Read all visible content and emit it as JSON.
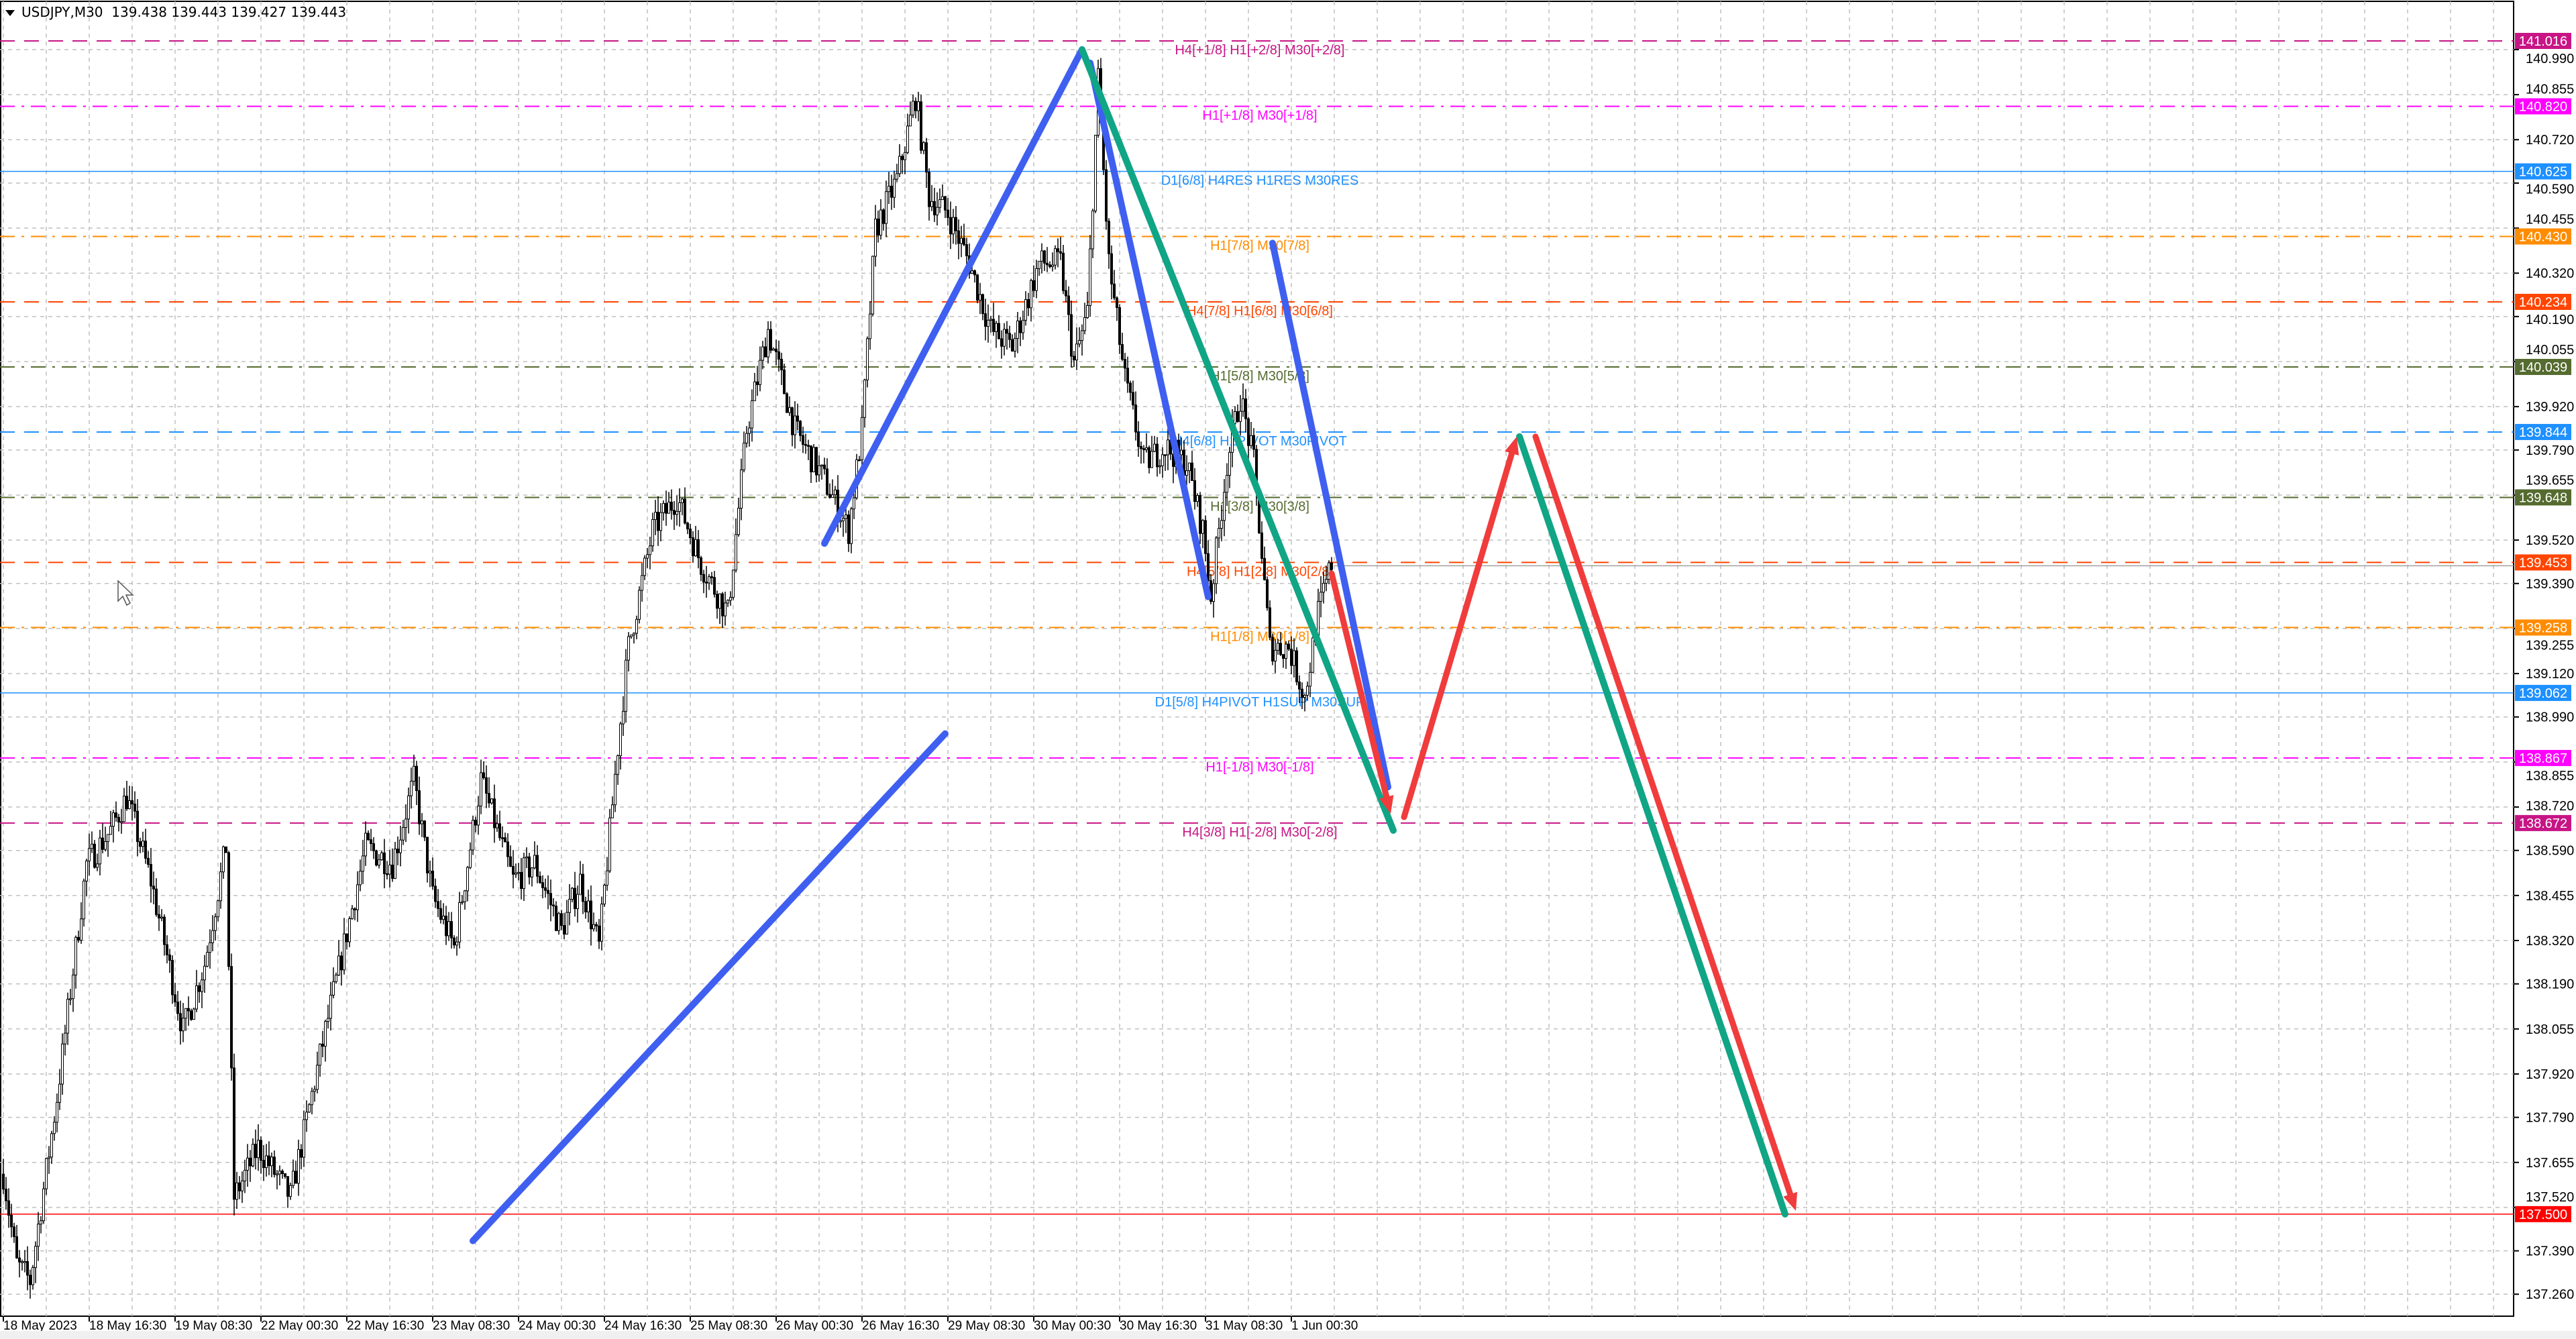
{
  "window": {
    "symbol_label": "USDJPY,M30",
    "ohlc": "139.438 139.443 139.427 139.443",
    "collapse_icon": "triangle-down-icon"
  },
  "colors": {
    "background": "#ffffff",
    "grid": "#c0c0c0",
    "bull_body": "#ffffff",
    "bear_body": "#000000",
    "candle_outline": "#000000",
    "blue_wave": "#3f5ff0",
    "green_wave": "#10a585",
    "red_forecast": "#f03c3c"
  },
  "chart_data": {
    "type": "candlestick",
    "symbol": "USDJPY",
    "timeframe": "M30",
    "ylim": [
      137.2,
      141.1
    ],
    "y_ticks": [
      "140.990",
      "140.855",
      "140.720",
      "140.590",
      "140.455",
      "140.320",
      "140.190",
      "140.055",
      "139.920",
      "139.790",
      "139.655",
      "139.520",
      "139.390",
      "139.255",
      "139.120",
      "138.990",
      "138.855",
      "138.720",
      "138.590",
      "138.455",
      "138.320",
      "138.190",
      "138.055",
      "137.920",
      "137.790",
      "137.655",
      "137.520",
      "137.390",
      "137.260"
    ],
    "x_ticks": [
      "18 May 2023",
      "18 May 16:30",
      "19 May 08:30",
      "22 May 00:30",
      "22 May 16:30",
      "23 May 08:30",
      "24 May 00:30",
      "24 May 16:30",
      "25 May 08:30",
      "26 May 00:30",
      "26 May 16:30",
      "29 May 08:30",
      "30 May 00:30",
      "30 May 16:30",
      "31 May 08:30",
      "1 Jun 00:30"
    ],
    "bars_per_x_tick": 32,
    "price_path": [
      [
        0,
        137.62
      ],
      [
        5,
        137.35
      ],
      [
        10,
        137.3
      ],
      [
        20,
        137.85
      ],
      [
        31,
        138.55
      ],
      [
        40,
        138.65
      ],
      [
        46,
        138.75
      ],
      [
        55,
        138.5
      ],
      [
        67,
        138.05
      ],
      [
        75,
        138.25
      ],
      [
        83,
        138.6
      ],
      [
        86,
        137.55
      ],
      [
        95,
        137.7
      ],
      [
        107,
        137.55
      ],
      [
        120,
        138.05
      ],
      [
        135,
        138.6
      ],
      [
        145,
        138.55
      ],
      [
        153,
        138.8
      ],
      [
        160,
        138.45
      ],
      [
        168,
        138.3
      ],
      [
        178,
        138.8
      ],
      [
        190,
        138.5
      ],
      [
        198,
        138.55
      ],
      [
        208,
        138.35
      ],
      [
        215,
        138.5
      ],
      [
        222,
        138.3
      ],
      [
        229,
        138.9
      ],
      [
        233,
        139.2
      ],
      [
        242,
        139.55
      ],
      [
        251,
        139.65
      ],
      [
        260,
        139.45
      ],
      [
        270,
        139.3
      ],
      [
        277,
        139.85
      ],
      [
        285,
        140.15
      ],
      [
        295,
        139.85
      ],
      [
        306,
        139.7
      ],
      [
        315,
        139.55
      ],
      [
        320,
        139.85
      ],
      [
        325,
        140.45
      ],
      [
        333,
        140.6
      ],
      [
        340,
        140.85
      ],
      [
        345,
        140.55
      ],
      [
        352,
        140.5
      ],
      [
        360,
        140.35
      ],
      [
        368,
        140.15
      ],
      [
        376,
        140.1
      ],
      [
        386,
        140.35
      ],
      [
        394,
        140.35
      ],
      [
        399,
        140.05
      ],
      [
        404,
        140.2
      ],
      [
        408,
        140.9
      ],
      [
        412,
        140.35
      ],
      [
        418,
        140.0
      ],
      [
        425,
        139.75
      ],
      [
        433,
        139.8
      ],
      [
        441,
        139.75
      ],
      [
        447,
        139.55
      ],
      [
        450,
        139.35
      ],
      [
        456,
        139.75
      ],
      [
        461,
        139.95
      ],
      [
        466,
        139.75
      ],
      [
        472,
        139.2
      ],
      [
        479,
        139.2
      ],
      [
        485,
        139.05
      ],
      [
        490,
        139.3
      ],
      [
        495,
        139.45
      ]
    ],
    "pattern_lines": [
      {
        "color": "blue_wave",
        "from": [
          175,
          137.42
        ],
        "to": [
          351,
          138.94
        ]
      },
      {
        "color": "blue_wave",
        "from": [
          306,
          139.51
        ],
        "to": [
          402,
          140.99
        ]
      },
      {
        "color": "blue_wave",
        "from": [
          405,
          140.95
        ],
        "to": [
          449,
          139.35
        ]
      },
      {
        "color": "blue_wave",
        "from": [
          473,
          140.41
        ],
        "to": [
          516,
          138.78
        ]
      },
      {
        "color": "green_wave",
        "from": [
          402,
          140.99
        ],
        "to": [
          518,
          138.65
        ]
      },
      {
        "color": "green_wave",
        "from": [
          565,
          139.83
        ],
        "to": [
          664,
          137.5
        ]
      }
    ],
    "forecast_arrows": [
      {
        "color": "red_forecast",
        "from": [
          495,
          139.42
        ],
        "to": [
          517,
          138.7
        ]
      },
      {
        "color": "red_forecast",
        "from": [
          522,
          138.69
        ],
        "to": [
          564,
          139.83
        ]
      },
      {
        "color": "red_forecast",
        "from": [
          571,
          139.83
        ],
        "to": [
          668,
          137.51
        ]
      }
    ],
    "levels": [
      {
        "price": "141.016",
        "label": "H4[+1/8] H1[+2/8] M30[+2/8]",
        "color": "#c71585",
        "style": "dash"
      },
      {
        "price": "140.820",
        "label": "H1[+1/8] M30[+1/8]",
        "color": "#ff00ff",
        "style": "dashdot"
      },
      {
        "price": "140.625",
        "label": "D1[6/8] H4RES H1RES M30RES",
        "color": "#1e90ff",
        "style": "solid"
      },
      {
        "price": "140.430",
        "label": "H1[7/8] M30[7/8]",
        "color": "#ff8c00",
        "style": "dashdot"
      },
      {
        "price": "140.234",
        "label": "H4[7/8] H1[6/8] M30[6/8]",
        "color": "#ff4500",
        "style": "dash"
      },
      {
        "price": "140.039",
        "label": "H1[5/8] M30[5/8]",
        "color": "#556b2f",
        "style": "dashdot"
      },
      {
        "price": "139.844",
        "label": "H4[6/8] H1PIVOT M30PIVOT",
        "color": "#1e90ff",
        "style": "dash"
      },
      {
        "price": "139.648",
        "label": "H1[3/8] M30[3/8]",
        "color": "#556b2f",
        "style": "dashdot"
      },
      {
        "price": "139.453",
        "label": "H4[5/8] H1[2/8] M30[2/8]",
        "color": "#ff4500",
        "style": "dash"
      },
      {
        "price": "139.258",
        "label": "H1[1/8] M30[1/8]",
        "color": "#ff8c00",
        "style": "dashdot"
      },
      {
        "price": "139.062",
        "label": "D1[5/8] H4PIVOT H1SUP M30SUP",
        "color": "#1e90ff",
        "style": "solid"
      },
      {
        "price": "138.867",
        "label": "H1[-1/8] M30[-1/8]",
        "color": "#ff00ff",
        "style": "dashdot"
      },
      {
        "price": "138.672",
        "label": "H4[3/8] H1[-2/8] M30[-2/8]",
        "color": "#c71585",
        "style": "dash"
      },
      {
        "price": "137.500",
        "label": "",
        "color": "#ff0000",
        "style": "solid"
      }
    ],
    "current_price": "139.443"
  }
}
